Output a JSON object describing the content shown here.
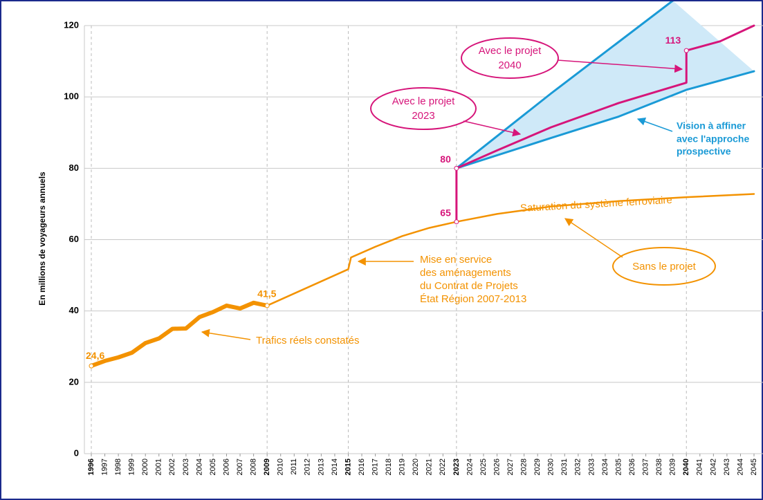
{
  "chart_data": {
    "type": "line",
    "y_label": "En millions de voyageurs annuels",
    "ylim": [
      0,
      120
    ],
    "yticks": [
      0,
      20,
      40,
      60,
      80,
      100,
      120
    ],
    "xlim": [
      1996,
      2045
    ],
    "xticks": [
      1996,
      1997,
      1998,
      1999,
      2000,
      2001,
      2002,
      2003,
      2004,
      2005,
      2006,
      2007,
      2008,
      2009,
      2010,
      2011,
      2012,
      2013,
      2014,
      2015,
      2016,
      2017,
      2018,
      2019,
      2020,
      2021,
      2022,
      2023,
      2024,
      2025,
      2026,
      2027,
      2028,
      2029,
      2030,
      2031,
      2032,
      2033,
      2034,
      2035,
      2036,
      2037,
      2038,
      2039,
      2040,
      2041,
      2042,
      2043,
      2044,
      2045
    ],
    "highlight_years": [
      1996,
      2009,
      2015,
      2023,
      2040
    ],
    "grid": true,
    "band_color": "#cfe9f8",
    "series": [
      {
        "color": "#f39200",
        "width": 6,
        "x": [
          1996,
          1997,
          1998,
          1999,
          2000,
          2001,
          2002,
          2003,
          2004,
          2005,
          2006,
          2007,
          2008,
          2009
        ],
        "values": [
          24.6,
          26,
          27,
          28.3,
          31,
          32.3,
          35,
          35.1,
          38.3,
          39.7,
          41.5,
          40.7,
          42.3,
          41.5
        ]
      },
      {
        "color": "#f39200",
        "width": 2.5,
        "x": [
          2009,
          2015,
          2015.2,
          2017,
          2019,
          2021,
          2023,
          2026,
          2030,
          2035,
          2040,
          2045
        ],
        "values": [
          41.5,
          51.7,
          55,
          58,
          61,
          63.3,
          65,
          67.2,
          69.3,
          70.8,
          71.9,
          72.8
        ]
      },
      {
        "color": "#1a9ad6",
        "width": 3,
        "band": true,
        "x": [
          2023,
          2030,
          2039
        ],
        "values": [
          80,
          101,
          127
        ]
      },
      {
        "color": "#1a9ad6",
        "width": 3,
        "band": true,
        "x": [
          2023,
          2030,
          2035,
          2040,
          2045
        ],
        "values": [
          80,
          88.5,
          94.5,
          102,
          107.2
        ]
      },
      {
        "color": "#d6157a",
        "width": 3,
        "x": [
          2023,
          2023
        ],
        "values": [
          65,
          80
        ]
      },
      {
        "color": "#d6157a",
        "width": 3,
        "x": [
          2023,
          2026,
          2030,
          2035,
          2040,
          2040,
          2042.5,
          2045
        ],
        "values": [
          80,
          85,
          91.5,
          98.3,
          104,
          113,
          115.6,
          120
        ]
      }
    ],
    "point_labels": [
      {
        "x": 1996,
        "value": 24.6,
        "label": "24,6",
        "color": "#f39200"
      },
      {
        "x": 2009,
        "value": 41.5,
        "label": "41,5",
        "color": "#f39200"
      },
      {
        "x": 2023,
        "value": 65,
        "label": "65",
        "color": "#d6157a"
      },
      {
        "x": 2023,
        "value": 80,
        "label": "80",
        "color": "#d6157a"
      },
      {
        "x": 2040,
        "value": 113,
        "label": "113",
        "color": "#d6157a"
      }
    ],
    "annotations": [
      {
        "lines": [
          "Trafics réels constatés"
        ]
      },
      {
        "lines": [
          "Mise en service",
          "des aménagements",
          "du Contrat de Projets",
          "État Région 2007-2013"
        ]
      },
      {
        "lines": [
          "Saturation  du système ferroviaire"
        ]
      },
      {
        "lines": [
          "Sans le projet"
        ]
      },
      {
        "lines": [
          "Avec le projet",
          "2023"
        ]
      },
      {
        "lines": [
          "Avec le projet",
          "2040"
        ]
      },
      {
        "lines": [
          "Vision à affiner",
          "avec l'approche",
          "prospective"
        ]
      }
    ]
  }
}
